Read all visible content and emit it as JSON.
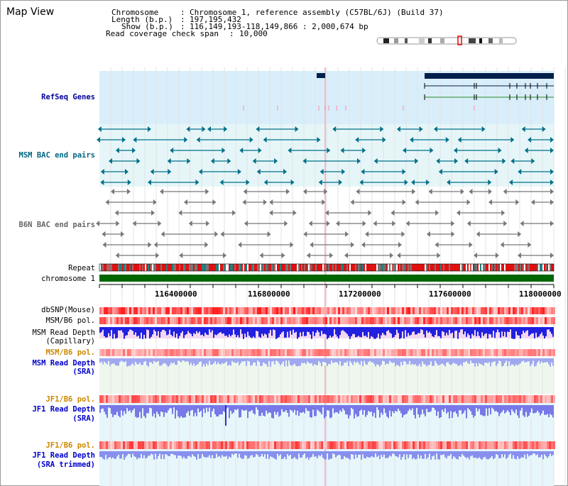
{
  "view_title": "Map View",
  "info": {
    "chromosome_label": "Chromosome",
    "chromosome_value": "Chromosome 1, reference assembly (C57BL/6J) (Build 37)",
    "length_label": "Length (b.p.)",
    "length_value": "197,195,432",
    "show_label": "Show (b.p.)",
    "show_value": "116,149,193-118,149,866 : 2,000,674 bp",
    "coverage_label": "Read coverage check span",
    "coverage_value": "10,000"
  },
  "tracks": {
    "refseq": "RefSeq Genes",
    "msm_bac": "MSM BAC end pairs",
    "b6n_bac": "B6N BAC end pairs",
    "repeat": "Repeat",
    "chromosome": "chromosome 1",
    "dbsnp": "dbSNP(Mouse)",
    "msm_b6_pol_1": "MSM/B6 pol.",
    "msm_read_depth_cap_1": "MSM Read Depth",
    "msm_read_depth_cap_2": "(Capillary)",
    "msm_b6_pol_2": "MSM/B6 pol.",
    "msm_read_depth_sra_1": "MSM Read Depth",
    "msm_read_depth_sra_2": "(SRA)",
    "jf1_b6_pol_1": "JF1/B6 pol.",
    "jf1_read_depth_sra_1": "JF1 Read Depth",
    "jf1_read_depth_sra_2": "(SRA)",
    "jf1_b6_pol_2": "JF1/B6 pol.",
    "jf1_read_depth_trim_1": "JF1 Read Depth",
    "jf1_read_depth_trim_2": "(SRA trimmed)"
  },
  "axis_ticks": [
    "116400000",
    "116800000",
    "117200000",
    "117600000",
    "118000000"
  ],
  "colors": {
    "refseq_label": "#000099",
    "msm_label": "#006680",
    "b6n_label": "#666666",
    "pol_orange": "#cc8800",
    "depth_blue": "#0000cc",
    "chromosome_green": "#006600",
    "gene_navy": "#00204a"
  }
}
